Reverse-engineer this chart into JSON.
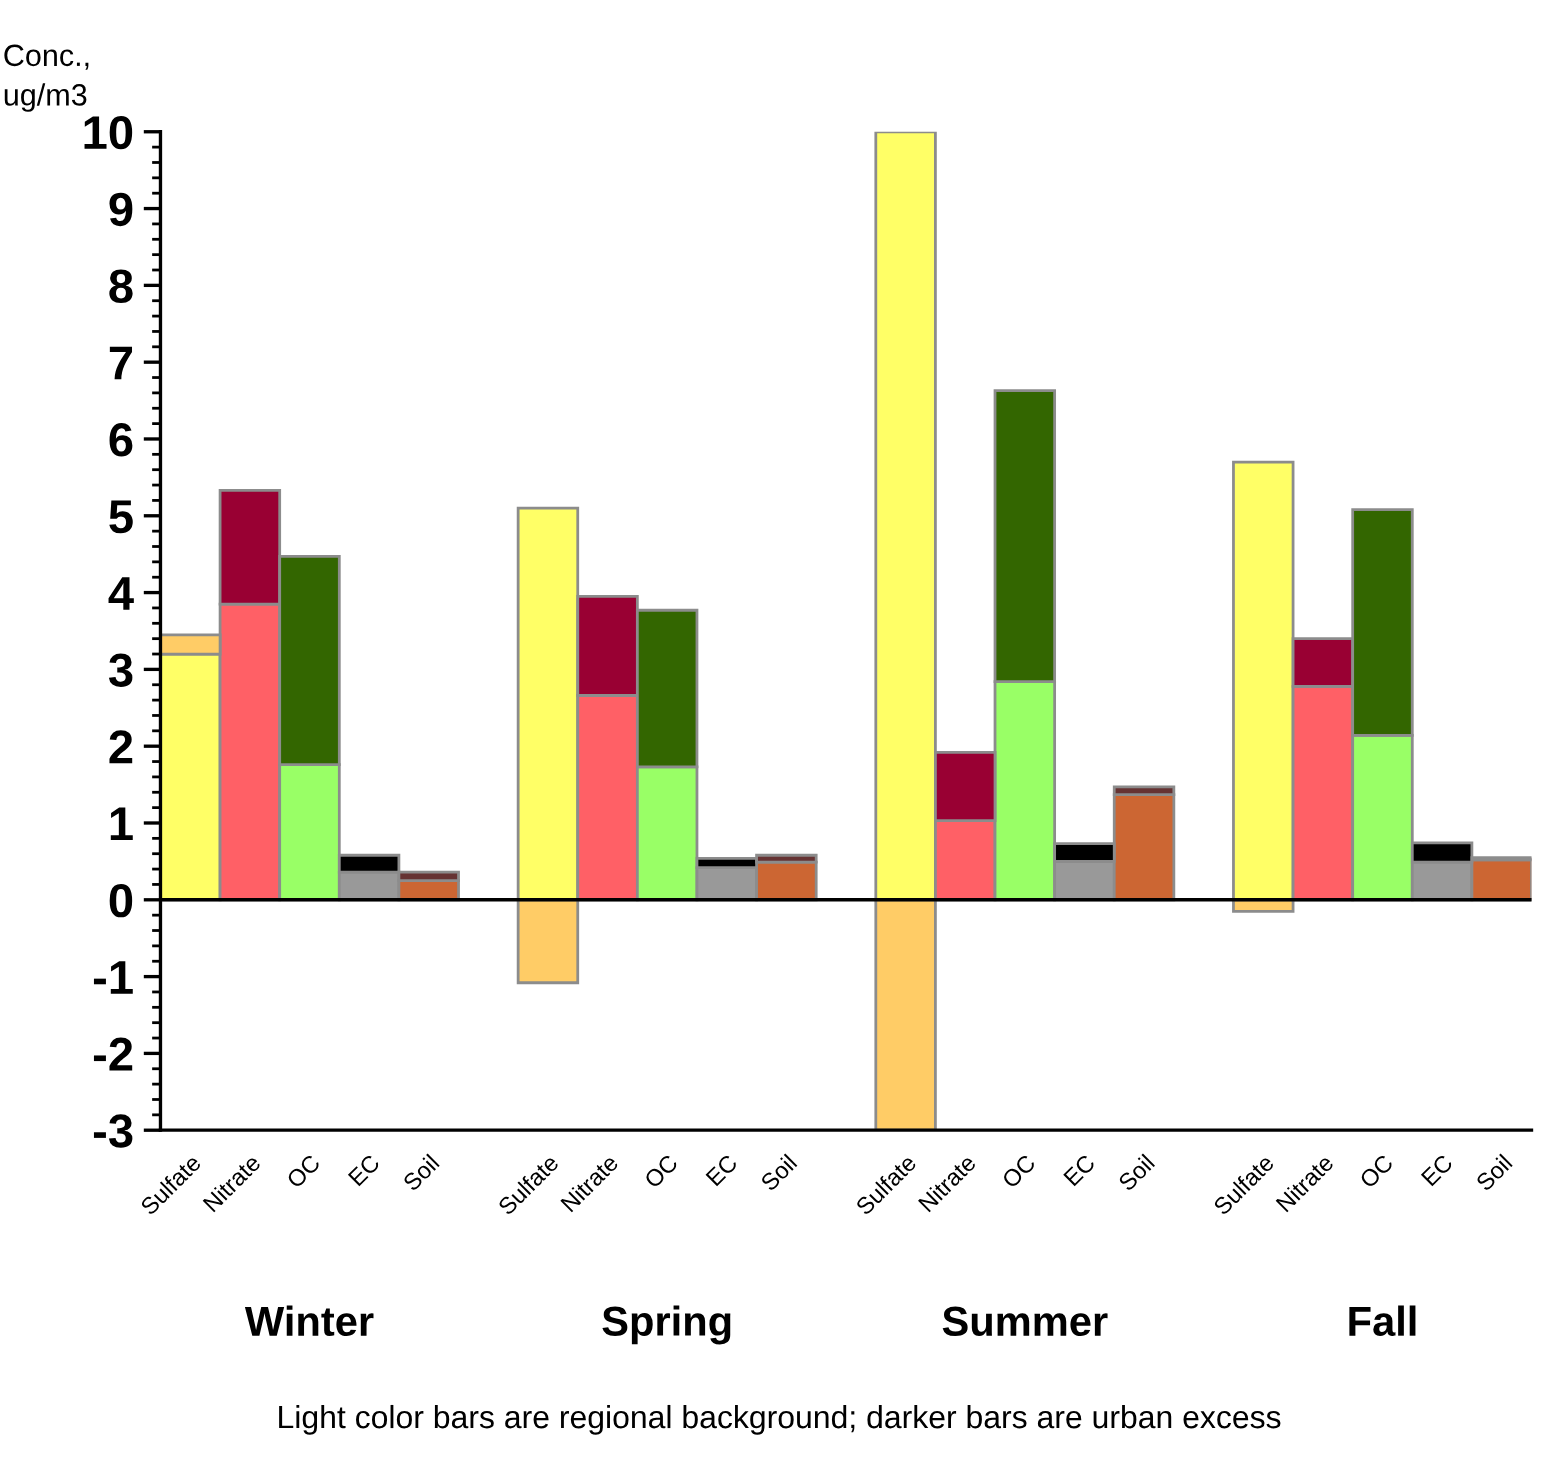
{
  "chart_data": {
    "type": "bar",
    "stacked": true,
    "ylabel": "Conc.,\nug/m3",
    "categories": [
      "Sulfate",
      "Nitrate",
      "OC",
      "EC",
      "Soil",
      null,
      "Sulfate",
      "Nitrate",
      "OC",
      "EC",
      "Soil",
      null,
      "Sulfate",
      "Nitrate",
      "OC",
      "EC",
      "Soil",
      null,
      "Sulfate",
      "Nitrate",
      "OC",
      "EC",
      "Soil"
    ],
    "series": [
      {
        "colors": [
          "#ffff66",
          "#ff6066",
          "#99ff66",
          "#999999",
          "#cc6633",
          null,
          "#ffff66",
          "#ff6066",
          "#99ff66",
          "#999999",
          "#cc6633",
          null,
          "#ffff66",
          "#ff6066",
          "#99ff66",
          "#999999",
          "#cc6633",
          null,
          "#ffff66",
          "#ff6066",
          "#99ff66",
          "#999999",
          "#cc6633"
        ],
        "values": [
          3.2,
          3.85,
          1.76,
          0.36,
          0.25,
          null,
          5.1,
          2.66,
          1.73,
          0.42,
          0.49,
          null,
          10.0,
          1.03,
          2.84,
          0.5,
          1.37,
          null,
          5.7,
          2.78,
          2.14,
          0.49,
          0.52
        ]
      },
      {
        "colors": [
          "#ffcc66",
          "#990033",
          "#336600",
          "#000000",
          "#663333",
          null,
          "#ffcc66",
          "#990033",
          "#336600",
          "#000000",
          "#663333",
          null,
          "#ffcc66",
          "#990033",
          "#336600",
          "#000000",
          "#663333",
          null,
          "#ffcc66",
          "#990033",
          "#336600",
          "#000000",
          "#663333"
        ],
        "values": [
          0.25,
          1.48,
          2.71,
          0.22,
          0.11,
          null,
          -1.08,
          1.29,
          2.04,
          0.12,
          0.09,
          null,
          -3.0,
          0.89,
          3.79,
          0.23,
          0.1,
          null,
          -0.15,
          0.62,
          2.94,
          0.25,
          0.03
        ]
      }
    ],
    "ylim": [
      -3,
      10
    ],
    "yticks": [
      -3,
      -2,
      -1,
      0,
      1,
      2,
      3,
      4,
      5,
      6,
      7,
      8,
      9,
      10
    ],
    "ref_lines": [
      {
        "axis": "y",
        "value": 0,
        "color": "#000000"
      }
    ],
    "annotations": [
      "Winter",
      "Spring",
      "Summer",
      "Fall",
      "Light color bars are regional background; darker bars are urban excess"
    ]
  }
}
